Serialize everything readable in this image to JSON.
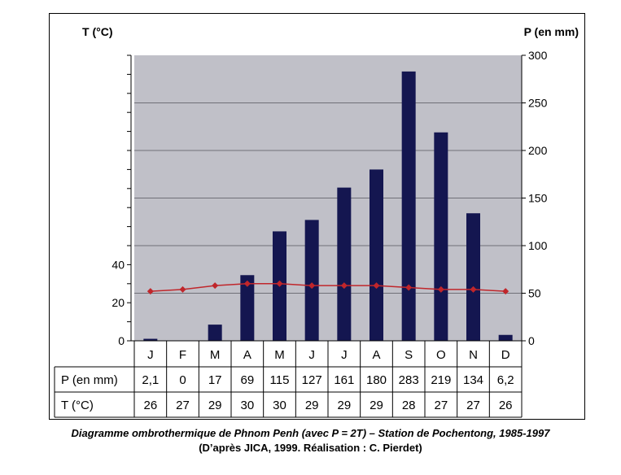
{
  "chart_data": {
    "type": "bar+line",
    "categories": [
      "J",
      "F",
      "M",
      "A",
      "M",
      "J",
      "J",
      "A",
      "S",
      "O",
      "N",
      "D"
    ],
    "series": [
      {
        "name": "P (en mm)",
        "type": "bar",
        "axis": "right",
        "values": [
          2.1,
          0,
          17,
          69,
          115,
          127,
          161,
          180,
          283,
          219,
          134,
          6.2
        ]
      },
      {
        "name": "T (°C)",
        "type": "line",
        "axis": "left",
        "values": [
          26,
          27,
          29,
          30,
          30,
          29,
          29,
          29,
          28,
          27,
          27,
          26
        ]
      }
    ],
    "left_axis": {
      "label": "T (°C)",
      "ticks": [
        "0",
        "20",
        "40"
      ],
      "range": [
        0,
        150
      ]
    },
    "right_axis": {
      "label": "P (en mm)",
      "ticks": [
        "0",
        "50",
        "100",
        "150",
        "200",
        "250",
        "300"
      ],
      "range": [
        0,
        300
      ]
    },
    "table": {
      "row_labels": [
        "P (en mm)",
        "T (°C)"
      ],
      "precip_display": [
        "2,1",
        "0",
        "17",
        "69",
        "115",
        "127",
        "161",
        "180",
        "283",
        "219",
        "134",
        "6,2"
      ],
      "temp_display": [
        "26",
        "27",
        "29",
        "30",
        "30",
        "29",
        "29",
        "29",
        "28",
        "27",
        "27",
        "26"
      ]
    },
    "grid": true,
    "colors": {
      "bar": "#141650",
      "line": "#c0262b",
      "plot_bg": "#c0c0c8"
    }
  },
  "caption": {
    "line1": "Diagramme ombrothermique de Phnom Penh (avec P = 2T) – Station de Pochentong, 1985-1997",
    "line2": "(D’après JICA, 1999. Réalisation : C. Pierdet)"
  }
}
